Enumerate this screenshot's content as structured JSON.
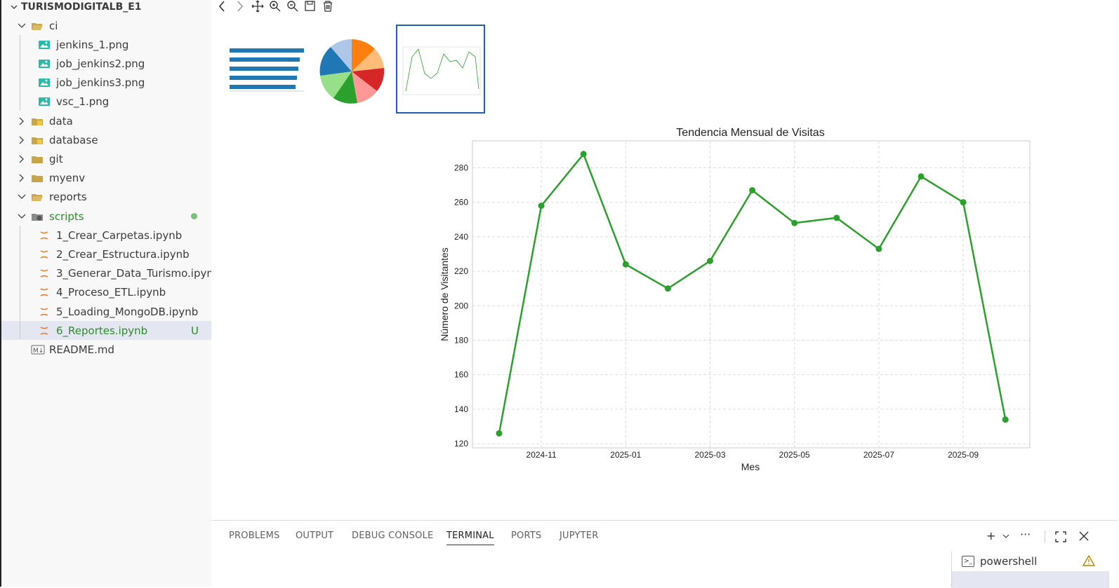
{
  "explorer": {
    "root": "TURISMODIGITALB_E1",
    "items": [
      {
        "label": "ci",
        "kind": "folder-open"
      },
      {
        "label": "jenkins_1.png",
        "kind": "image"
      },
      {
        "label": "job_jenkins2.png",
        "kind": "image"
      },
      {
        "label": "job_jenkins3.png",
        "kind": "image"
      },
      {
        "label": "vsc_1.png",
        "kind": "image"
      },
      {
        "label": "data",
        "kind": "folder-db"
      },
      {
        "label": "database",
        "kind": "folder-db"
      },
      {
        "label": "git",
        "kind": "folder"
      },
      {
        "label": "myenv",
        "kind": "folder"
      },
      {
        "label": "reports",
        "kind": "folder-open"
      },
      {
        "label": "scripts",
        "kind": "folder-special"
      },
      {
        "label": "1_Crear_Carpetas.ipynb",
        "kind": "notebook"
      },
      {
        "label": "2_Crear_Estructura.ipynb",
        "kind": "notebook"
      },
      {
        "label": "3_Generar_Data_Turismo.ipynb",
        "kind": "notebook"
      },
      {
        "label": "4_Proceso_ETL.ipynb",
        "kind": "notebook"
      },
      {
        "label": "5_Loading_MongoDB.ipynb",
        "kind": "notebook"
      },
      {
        "label": "6_Reportes.ipynb",
        "kind": "notebook",
        "badge": "U"
      },
      {
        "label": "README.md",
        "kind": "markdown"
      }
    ]
  },
  "toolbar_icons": [
    "back-icon",
    "forward-icon",
    "pan-icon",
    "zoom-in-icon",
    "zoom-out-icon",
    "save-icon",
    "delete-icon"
  ],
  "chart_data": {
    "type": "line",
    "title": "Tendencia Mensual de Visitas",
    "xlabel": "Mes",
    "ylabel": "Número de Visitantes",
    "x": [
      "2024-10",
      "2024-11",
      "2024-12",
      "2025-01",
      "2025-02",
      "2025-03",
      "2025-04",
      "2025-05",
      "2025-06",
      "2025-07",
      "2025-08",
      "2025-09",
      "2025-10"
    ],
    "values": [
      126,
      258,
      288,
      224,
      210,
      226,
      267,
      248,
      251,
      233,
      275,
      260,
      134
    ],
    "xticks": [
      "2024-11",
      "2025-01",
      "2025-03",
      "2025-05",
      "2025-07",
      "2025-09"
    ],
    "yticks": [
      120,
      140,
      160,
      180,
      200,
      220,
      240,
      260,
      280
    ],
    "ylim": [
      118,
      297
    ],
    "grid": true,
    "color": "#2ca02c"
  },
  "panel": {
    "tabs": [
      "PROBLEMS",
      "OUTPUT",
      "DEBUG CONSOLE",
      "TERMINAL",
      "PORTS",
      "JUPYTER"
    ],
    "active_tab": "TERMINAL",
    "terminals": [
      "powershell"
    ]
  },
  "colors": {
    "accent": "#2ca02c",
    "selection": "#e4e6f1",
    "git_untracked": "#2f8a2f"
  }
}
